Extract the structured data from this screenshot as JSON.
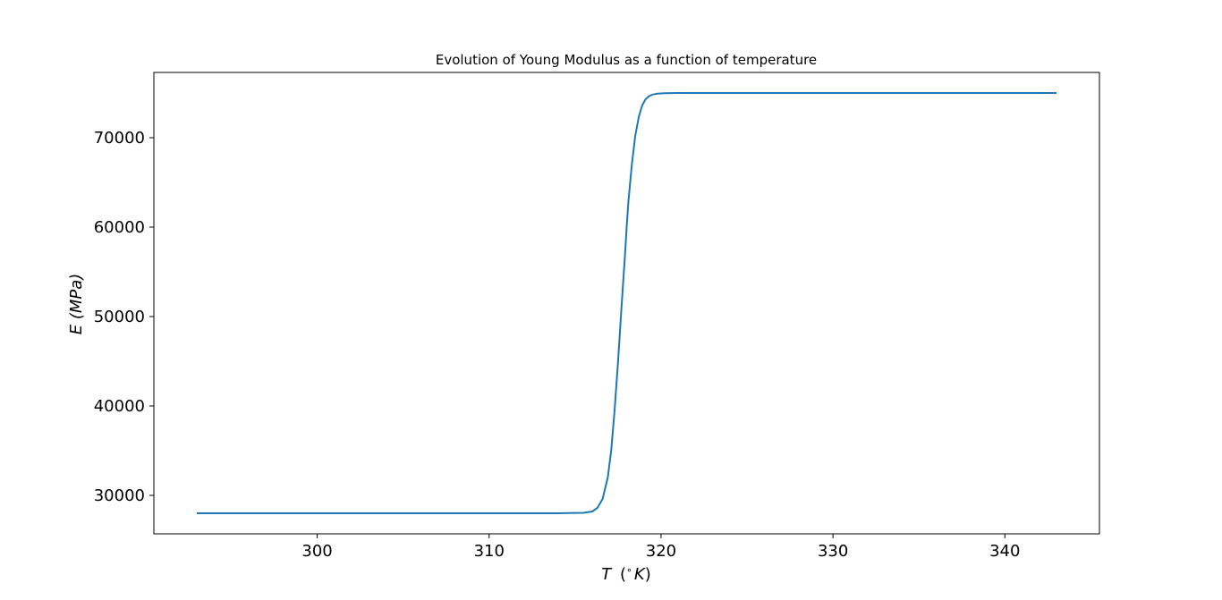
{
  "chart_data": {
    "type": "line",
    "title": "Evolution of Young Modulus as a function of temperature",
    "xlabel": "T ($^{\\circ}K$)",
    "xlabel_parts": {
      "var": "T",
      "open": "(",
      "deg": "∘",
      "unit": "K",
      "close": ")"
    },
    "ylabel": "E (MPa)",
    "xlim": [
      290.5,
      345.5
    ],
    "ylim": [
      25700,
      77300
    ],
    "xticks": [
      300,
      310,
      320,
      330,
      340
    ],
    "yticks": [
      30000,
      40000,
      50000,
      60000,
      70000
    ],
    "grid": false,
    "color": "#1f77b4",
    "series": [
      {
        "x": [
          293,
          296,
          300,
          305,
          310,
          314,
          315.5,
          316.0,
          316.3,
          316.6,
          316.9,
          317.1,
          317.3,
          317.5,
          317.7,
          317.9,
          318.0,
          318.1,
          318.3,
          318.5,
          318.7,
          318.9,
          319.1,
          319.3,
          319.5,
          319.8,
          320.2,
          321,
          325,
          330,
          335,
          340,
          343
        ],
        "y": [
          28000,
          28000,
          28000,
          28000,
          28000,
          28000,
          28050,
          28200,
          28600,
          29600,
          32000,
          35000,
          39500,
          45000,
          51000,
          56800,
          60000,
          62800,
          67000,
          70200,
          72300,
          73600,
          74300,
          74650,
          74820,
          74930,
          74980,
          75000,
          75000,
          75000,
          75000,
          75000,
          75000
        ]
      }
    ]
  }
}
